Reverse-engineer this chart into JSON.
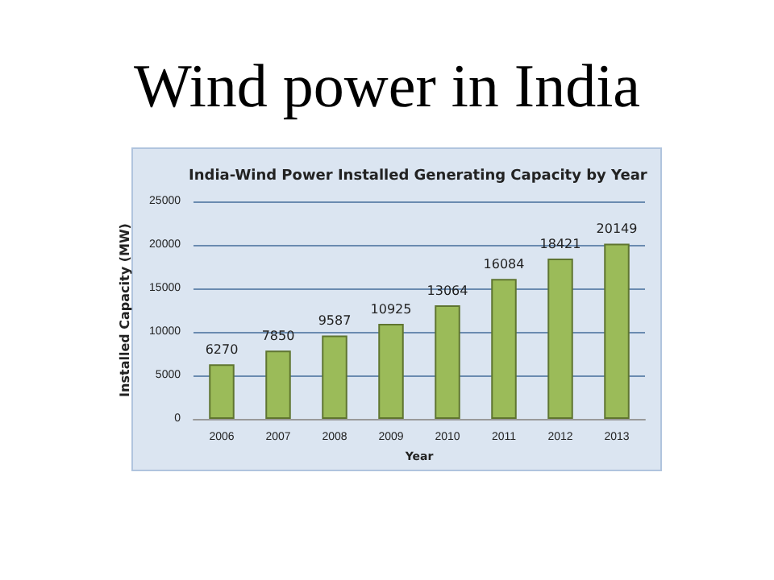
{
  "chart_data": {
    "type": "bar",
    "title": "Wind power in India",
    "subtitle": "India-Wind Power Installed Generating Capacity by Year",
    "xlabel": "Year",
    "ylabel": "Installed Capacity (MW)",
    "categories": [
      "2006",
      "2007",
      "2008",
      "2009",
      "2010",
      "2011",
      "2012",
      "2013"
    ],
    "values": [
      6270,
      7850,
      9587,
      10925,
      13064,
      16084,
      18421,
      20149
    ],
    "color": "#9bbb59",
    "ylim": [
      0,
      25000
    ],
    "yticks": [
      0,
      5000,
      10000,
      15000,
      20000,
      25000
    ],
    "grid": true,
    "data_labels": true
  }
}
